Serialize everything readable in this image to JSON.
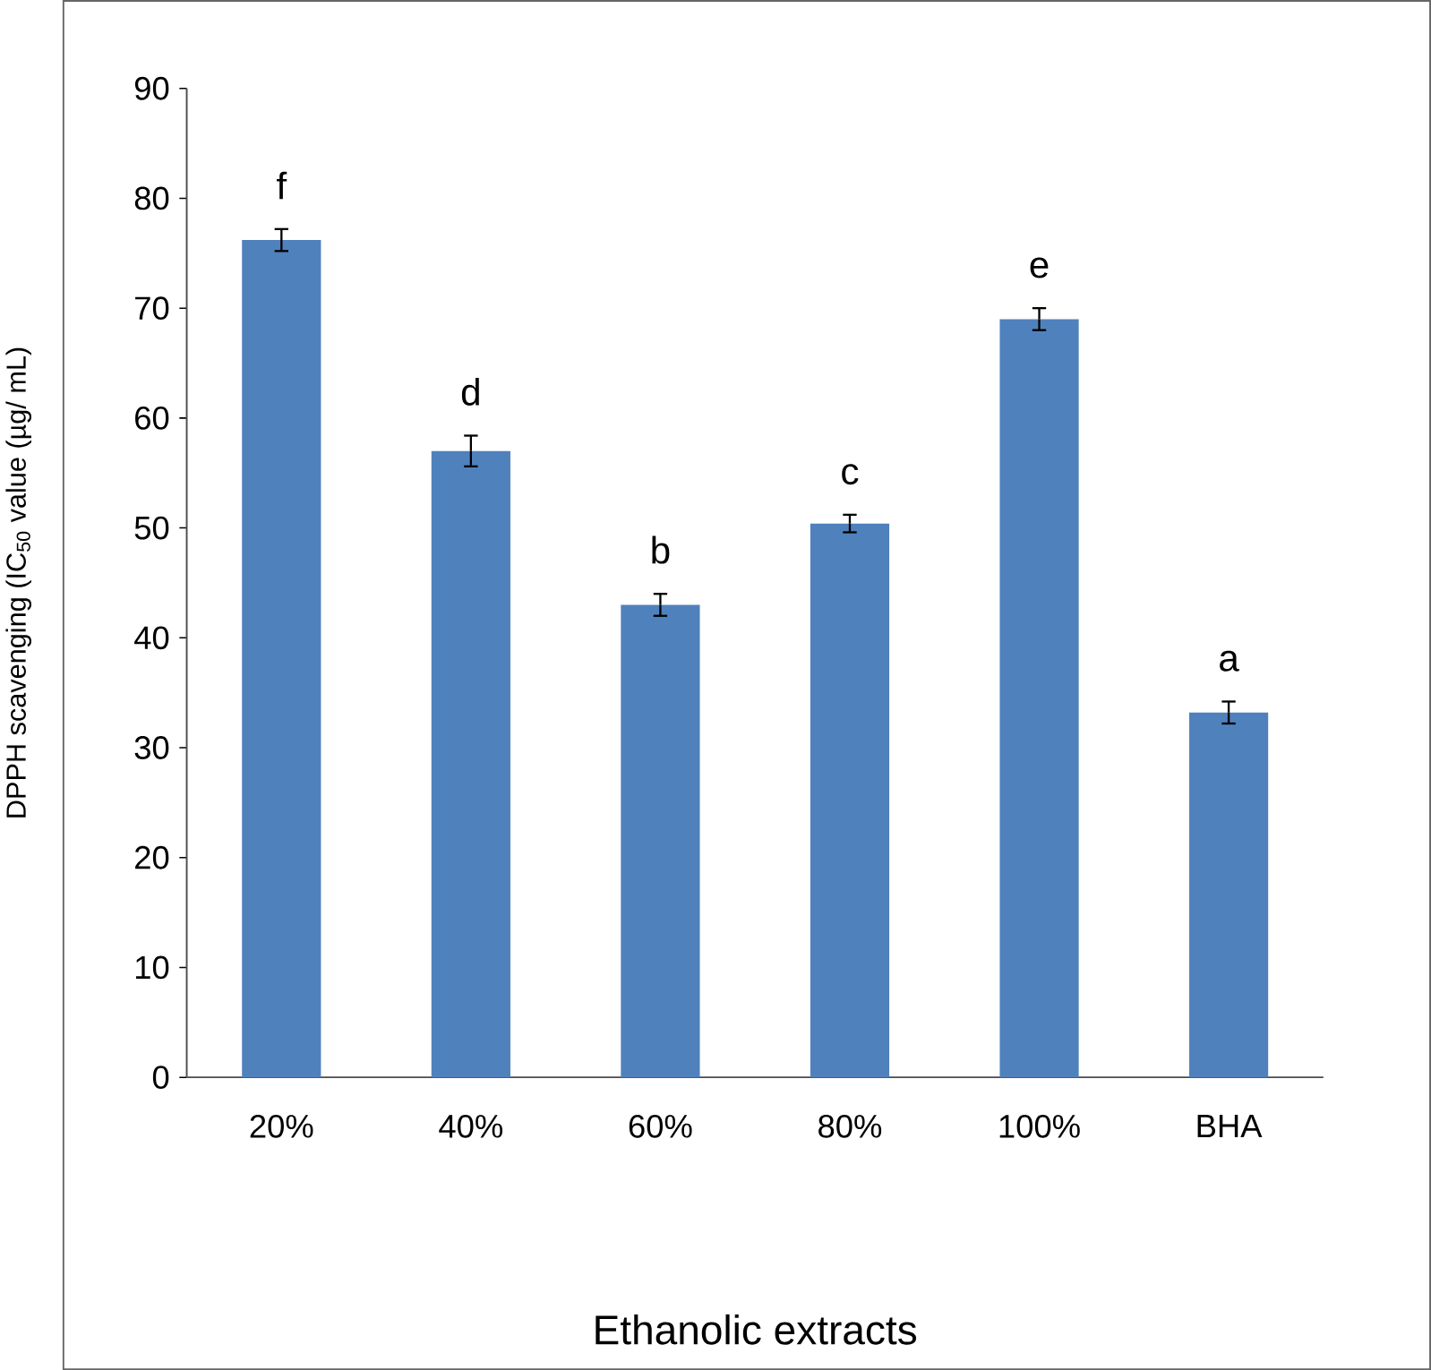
{
  "chart_data": {
    "type": "bar",
    "xlabel": "Ethanolic extracts",
    "ylabel": "DPPH scavenging  (IC$_{50}$ value (µg/ mL)",
    "categories": [
      "20%",
      "40%",
      "60%",
      "80%",
      "100%",
      "BHA"
    ],
    "values": [
      76.2,
      57.0,
      43.0,
      50.4,
      69.0,
      33.2
    ],
    "errors": [
      1.0,
      1.4,
      1.0,
      0.8,
      1.0,
      1.0
    ],
    "color": "#4f81bd",
    "ylim": [
      0,
      90
    ],
    "yticks": [
      0,
      10,
      20,
      30,
      40,
      50,
      60,
      70,
      80,
      90
    ],
    "annotations": [
      {
        "text": "f",
        "x": "20%",
        "y": 77.2
      },
      {
        "text": "d",
        "x": "40%",
        "y": 58.4
      },
      {
        "text": "b",
        "x": "60%",
        "y": 44.0
      },
      {
        "text": "c",
        "x": "80%",
        "y": 51.2
      },
      {
        "text": "e",
        "x": "100%",
        "y": 70.0
      },
      {
        "text": "a",
        "x": "BHA",
        "y": 34.2
      }
    ]
  }
}
